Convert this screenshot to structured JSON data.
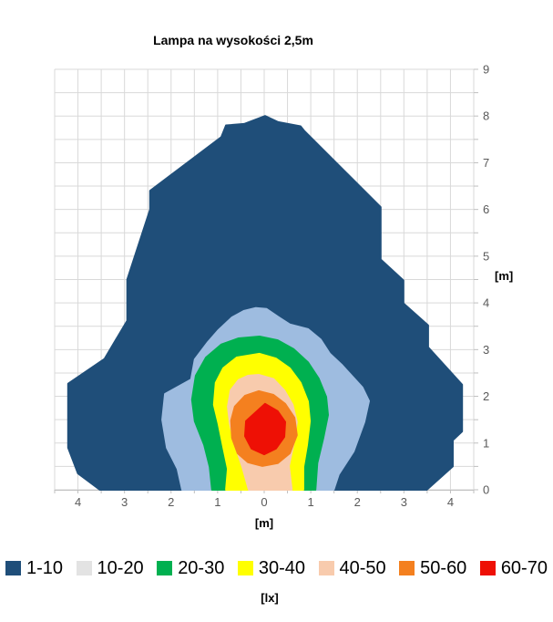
{
  "chart_data": {
    "type": "filled_contour",
    "title": "Lampa na wysokości 2,5m",
    "legend_unit_label": "[lx]",
    "grid": {
      "on": true,
      "step": 0.5,
      "color": "#D9D9D9",
      "axis_color": "#BFBFBF",
      "tick_label_color": "#595959"
    },
    "x_axis": {
      "unit_label": "[m]",
      "range": [
        -4.5,
        4.5
      ],
      "tick_values": [
        -4,
        -3,
        -2,
        -1,
        0,
        1,
        2,
        3,
        4
      ],
      "tick_labels": [
        "4",
        "3",
        "2",
        "1",
        "0",
        "1",
        "2",
        "3",
        "4"
      ]
    },
    "y_axis": {
      "unit_label": "[m]",
      "position": "right",
      "range": [
        0,
        9
      ],
      "tick_values": [
        0,
        1,
        2,
        3,
        4,
        5,
        6,
        7,
        8,
        9
      ],
      "tick_labels": [
        "0",
        "1",
        "2",
        "3",
        "4",
        "5",
        "6",
        "7",
        "8",
        "9"
      ]
    },
    "bands": [
      {
        "range": "1-10",
        "color": "#1F4E79",
        "legend_color": "#1F4E79",
        "polygon_m": [
          [
            -3.53,
            0
          ],
          [
            -4.0,
            0.35
          ],
          [
            -4.21,
            0.9
          ],
          [
            -4.21,
            2.27
          ],
          [
            -3.43,
            2.8
          ],
          [
            -2.94,
            3.62
          ],
          [
            -2.94,
            4.5
          ],
          [
            -2.45,
            6.0
          ],
          [
            -2.45,
            6.4
          ],
          [
            -0.92,
            7.55
          ],
          [
            -0.82,
            7.8
          ],
          [
            -0.43,
            7.83
          ],
          [
            0.02,
            8.0
          ],
          [
            0.3,
            7.87
          ],
          [
            0.78,
            7.78
          ],
          [
            0.86,
            7.68
          ],
          [
            2.5,
            6.05
          ],
          [
            2.5,
            4.93
          ],
          [
            2.99,
            4.48
          ],
          [
            2.99,
            3.99
          ],
          [
            3.52,
            3.52
          ],
          [
            3.52,
            3.05
          ],
          [
            4.25,
            2.25
          ],
          [
            4.25,
            1.25
          ],
          [
            4.05,
            1.06
          ],
          [
            4.05,
            0.5
          ],
          [
            3.49,
            0
          ]
        ]
      },
      {
        "range": "10-20",
        "color": "#9EBCE0",
        "legend_color": "#E3E3E3",
        "polygon_m": [
          [
            -0.18,
            3.89
          ],
          [
            0.05,
            3.87
          ],
          [
            0.3,
            3.7
          ],
          [
            0.55,
            3.54
          ],
          [
            0.94,
            3.44
          ],
          [
            1.21,
            3.22
          ],
          [
            1.41,
            2.91
          ],
          [
            1.66,
            2.68
          ],
          [
            2.11,
            2.19
          ],
          [
            2.25,
            1.9
          ],
          [
            2.15,
            1.45
          ],
          [
            1.92,
            0.82
          ],
          [
            1.6,
            0.33
          ],
          [
            1.49,
            0
          ],
          [
            -1.76,
            0
          ],
          [
            -1.86,
            0.45
          ],
          [
            -2.09,
            0.9
          ],
          [
            -2.19,
            1.5
          ],
          [
            -2.13,
            2.05
          ],
          [
            -1.57,
            2.36
          ],
          [
            -1.49,
            2.79
          ],
          [
            -1.21,
            3.16
          ],
          [
            -0.98,
            3.42
          ],
          [
            -0.69,
            3.69
          ],
          [
            -0.43,
            3.83
          ]
        ]
      },
      {
        "range": "20-30",
        "color": "#00B050",
        "legend_color": "#00B050",
        "polygon_m": [
          [
            -0.1,
            3.28
          ],
          [
            0.29,
            3.2
          ],
          [
            0.63,
            3.01
          ],
          [
            0.94,
            2.73
          ],
          [
            1.17,
            2.38
          ],
          [
            1.33,
            1.99
          ],
          [
            1.37,
            1.6
          ],
          [
            1.27,
            1.11
          ],
          [
            1.14,
            0.57
          ],
          [
            1.1,
            0
          ],
          [
            -1.12,
            0
          ],
          [
            -1.17,
            0.49
          ],
          [
            -1.29,
            0.96
          ],
          [
            -1.49,
            1.47
          ],
          [
            -1.55,
            1.93
          ],
          [
            -1.47,
            2.44
          ],
          [
            -1.25,
            2.83
          ],
          [
            -0.92,
            3.11
          ],
          [
            -0.55,
            3.24
          ]
        ]
      },
      {
        "range": "30-40",
        "color": "#FFFF00",
        "legend_color": "#FFFF00",
        "polygon_m": [
          [
            -0.1,
            2.91
          ],
          [
            0.25,
            2.81
          ],
          [
            0.55,
            2.6
          ],
          [
            0.78,
            2.29
          ],
          [
            0.94,
            1.89
          ],
          [
            0.98,
            1.47
          ],
          [
            0.92,
            0.96
          ],
          [
            0.84,
            0.49
          ],
          [
            0.84,
            0
          ],
          [
            -0.82,
            0
          ],
          [
            -0.78,
            0.45
          ],
          [
            -0.88,
            0.92
          ],
          [
            -0.98,
            1.41
          ],
          [
            -1.08,
            1.82
          ],
          [
            -1.04,
            2.29
          ],
          [
            -0.88,
            2.6
          ],
          [
            -0.59,
            2.83
          ]
        ]
      },
      {
        "range": "40-50",
        "color": "#F8CBAD",
        "legend_color": "#F8CBAD",
        "polygon_m": [
          [
            -0.12,
            2.46
          ],
          [
            0.2,
            2.37
          ],
          [
            0.43,
            2.13
          ],
          [
            0.61,
            1.82
          ],
          [
            0.7,
            1.45
          ],
          [
            0.63,
            0.98
          ],
          [
            0.53,
            0.51
          ],
          [
            0.59,
            0
          ],
          [
            -0.33,
            0
          ],
          [
            -0.47,
            0.49
          ],
          [
            -0.63,
            0.96
          ],
          [
            -0.74,
            1.43
          ],
          [
            -0.78,
            1.78
          ],
          [
            -0.72,
            2.13
          ],
          [
            -0.55,
            2.35
          ],
          [
            -0.35,
            2.44
          ]
        ]
      },
      {
        "range": "50-60",
        "color": "#F4801F",
        "legend_color": "#F4801F",
        "polygon_m": [
          [
            -0.12,
            2.11
          ],
          [
            0.2,
            2.03
          ],
          [
            0.45,
            1.84
          ],
          [
            0.65,
            1.54
          ],
          [
            0.7,
            1.17
          ],
          [
            0.55,
            0.78
          ],
          [
            0.29,
            0.57
          ],
          [
            -0.04,
            0.51
          ],
          [
            -0.35,
            0.59
          ],
          [
            -0.57,
            0.78
          ],
          [
            -0.69,
            1.11
          ],
          [
            -0.71,
            1.48
          ],
          [
            -0.63,
            1.78
          ],
          [
            -0.41,
            2.01
          ]
        ]
      },
      {
        "range": "60-70",
        "color": "#EE1005",
        "legend_color": "#EE1005",
        "polygon_m": [
          [
            0.02,
            1.84
          ],
          [
            0.29,
            1.68
          ],
          [
            0.45,
            1.45
          ],
          [
            0.43,
            1.13
          ],
          [
            0.25,
            0.88
          ],
          [
            0.0,
            0.76
          ],
          [
            -0.27,
            0.88
          ],
          [
            -0.41,
            1.15
          ],
          [
            -0.39,
            1.47
          ]
        ]
      }
    ]
  }
}
